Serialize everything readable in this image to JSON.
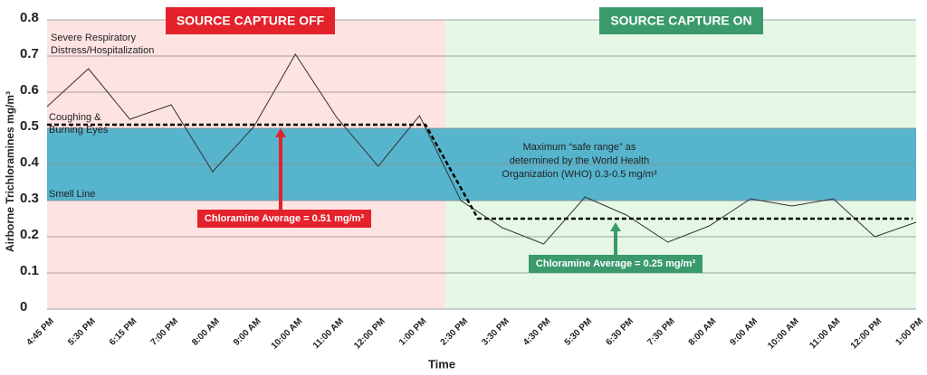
{
  "chart_data": {
    "type": "line",
    "y_label": "Airborne Trichloramines mg/m³",
    "x_label": "Time",
    "categories": [
      "4:45 PM",
      "5:30 PM",
      "6:15 PM",
      "7:00 PM",
      "8:00 AM",
      "9:00 AM",
      "10:00 AM",
      "11:00 AM",
      "12:00 PM",
      "1:00 PM",
      "2:30 PM",
      "3:30 PM",
      "4:30 PM",
      "5:30 PM",
      "6:30 PM",
      "7:30 PM",
      "8:00 AM",
      "9:00 AM",
      "10:00 AM",
      "11:00 AM",
      "12:00 PM",
      "1:00 PM"
    ],
    "values": [
      0.56,
      0.665,
      0.525,
      0.565,
      0.38,
      0.505,
      0.705,
      0.53,
      0.395,
      0.535,
      0.3,
      0.225,
      0.18,
      0.31,
      0.26,
      0.185,
      0.23,
      0.305,
      0.285,
      0.305,
      0.2,
      0.24
    ],
    "color": "#333333",
    "ylim": [
      0,
      0.8
    ],
    "yticks": [
      0,
      0.1,
      0.2,
      0.3,
      0.4,
      0.5,
      0.6,
      0.7,
      0.8
    ],
    "grid": true,
    "regions": [
      {
        "label": "SOURCE CAPTURE OFF",
        "color": "#e3222b",
        "background": "#fde3e2"
      },
      {
        "label": "SOURCE CAPTURE ON",
        "color": "#3a9a6c",
        "background": "#e5f8e5"
      }
    ],
    "safe_range": {
      "range": [
        0.3,
        0.5
      ],
      "color": "#56b4cd",
      "text": [
        "Maximum “safe range” as",
        "determined by the World Health",
        "Organization (WHO) 0.3-0.5 mg/m³"
      ]
    },
    "reference_labels": [
      {
        "value": 0.7,
        "lines": [
          "Severe Respiratory",
          "Distress/Hospitalization"
        ]
      },
      {
        "value": 0.5,
        "lines": [
          "Coughing &",
          "Burning Eyes"
        ]
      },
      {
        "value": 0.3,
        "lines": [
          "Smell Line"
        ]
      }
    ],
    "averages": [
      {
        "value": 0.51,
        "label": "Chloramine Average = 0.51 mg/m³",
        "color": "#e3222b"
      },
      {
        "value": 0.25,
        "label": "Chloramine Average = 0.25 mg/m³",
        "color": "#3a9a6c"
      }
    ]
  }
}
